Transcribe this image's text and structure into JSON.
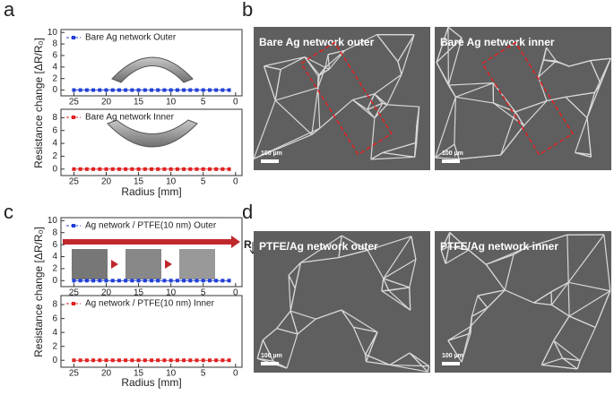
{
  "panels": [
    "a",
    "b",
    "c",
    "d"
  ],
  "axis_labels": {
    "a": {
      "y": "Resistance change [ΔR/R₀]",
      "x": "Radius [mm]"
    },
    "c": {
      "y": "Resistance change [ΔR/R₀]",
      "x": "Radius [mm]"
    }
  },
  "annotation": "R",
  "images": [
    {
      "title": "Bare Ag network outer",
      "scale_bar": "100 µm"
    },
    {
      "title": "Bare Ag network inner",
      "scale_bar": "100 µm"
    },
    {
      "title": "PTFE/Ag network outer",
      "scale_bar": "100 µm"
    },
    {
      "title": "PTFE/Ag network inner",
      "scale_bar": "100 µm"
    }
  ],
  "chart_data": [
    {
      "type": "scatter",
      "xlim": [
        27,
        -1
      ],
      "xticks": [
        25,
        20,
        15,
        10,
        5,
        0
      ],
      "ylim": [
        -1,
        10.5
      ],
      "yticks": [
        0,
        2,
        4,
        6,
        8,
        10
      ],
      "x": [
        25,
        24,
        23,
        22,
        21,
        20,
        19,
        18,
        17,
        16,
        15,
        14,
        13,
        12,
        11,
        10,
        9,
        8,
        7,
        6,
        5,
        4,
        3,
        2,
        1
      ],
      "series": [
        {
          "name": "Bare Ag network Outer",
          "color": "#1f3fd6",
          "values": [
            0,
            0,
            0,
            0,
            0,
            0,
            0,
            0,
            0,
            0,
            0,
            0,
            0,
            0,
            0,
            0,
            0,
            0,
            0,
            0,
            0,
            0,
            0,
            0,
            0
          ]
        }
      ]
    },
    {
      "type": "scatter",
      "xlim": [
        27,
        -1
      ],
      "xticks": [
        25,
        20,
        15,
        10,
        5,
        0
      ],
      "ylim": [
        -1,
        9.3
      ],
      "yticks": [
        0,
        2,
        4,
        6,
        8
      ],
      "x": [
        25,
        24,
        23,
        22,
        21,
        20,
        19,
        18,
        17,
        16,
        15,
        14,
        13,
        12,
        11,
        10,
        9,
        8,
        7,
        6,
        5,
        4,
        3,
        2,
        1
      ],
      "series": [
        {
          "name": "Bare Ag network Inner",
          "color": "#e02020",
          "values": [
            0,
            0,
            0,
            0,
            0,
            0,
            0,
            0,
            0,
            0,
            0,
            0,
            0,
            0,
            0,
            0,
            0,
            0,
            0,
            0,
            0,
            0,
            0,
            0,
            0
          ]
        }
      ]
    },
    {
      "type": "scatter",
      "xlim": [
        27,
        -1
      ],
      "xticks": [
        25,
        20,
        15,
        10,
        5,
        0
      ],
      "ylim": [
        -1,
        10.5
      ],
      "yticks": [
        0,
        2,
        4,
        6,
        8,
        10
      ],
      "x": [
        25,
        24,
        23,
        22,
        21,
        20,
        19,
        18,
        17,
        16,
        15,
        14,
        13,
        12,
        11,
        10,
        9,
        8,
        7,
        6,
        5,
        4,
        3,
        2,
        1
      ],
      "series": [
        {
          "name": "Ag network  / PTFE(10 nm) Outer",
          "color": "#1f3fd6",
          "values": [
            0,
            0,
            0,
            0,
            0,
            0,
            0,
            0,
            0,
            0,
            0,
            0,
            0,
            0,
            0,
            0,
            0,
            0,
            0,
            0,
            0,
            0,
            0,
            0,
            0
          ]
        }
      ]
    },
    {
      "type": "scatter",
      "xlim": [
        27,
        -1
      ],
      "xticks": [
        25,
        20,
        15,
        10,
        5,
        0
      ],
      "ylim": [
        -1,
        9.3
      ],
      "yticks": [
        0,
        2,
        4,
        6,
        8
      ],
      "x": [
        25,
        24,
        23,
        22,
        21,
        20,
        19,
        18,
        17,
        16,
        15,
        14,
        13,
        12,
        11,
        10,
        9,
        8,
        7,
        6,
        5,
        4,
        3,
        2,
        1
      ],
      "series": [
        {
          "name": "Ag network  / PTFE(10 nm) Inner",
          "color": "#e02020",
          "values": [
            0,
            0,
            0,
            0,
            0,
            0,
            0,
            0,
            0,
            0,
            0,
            0,
            0,
            0,
            0,
            0,
            0,
            0,
            0,
            0,
            0,
            0,
            0,
            0,
            0
          ]
        }
      ]
    }
  ]
}
